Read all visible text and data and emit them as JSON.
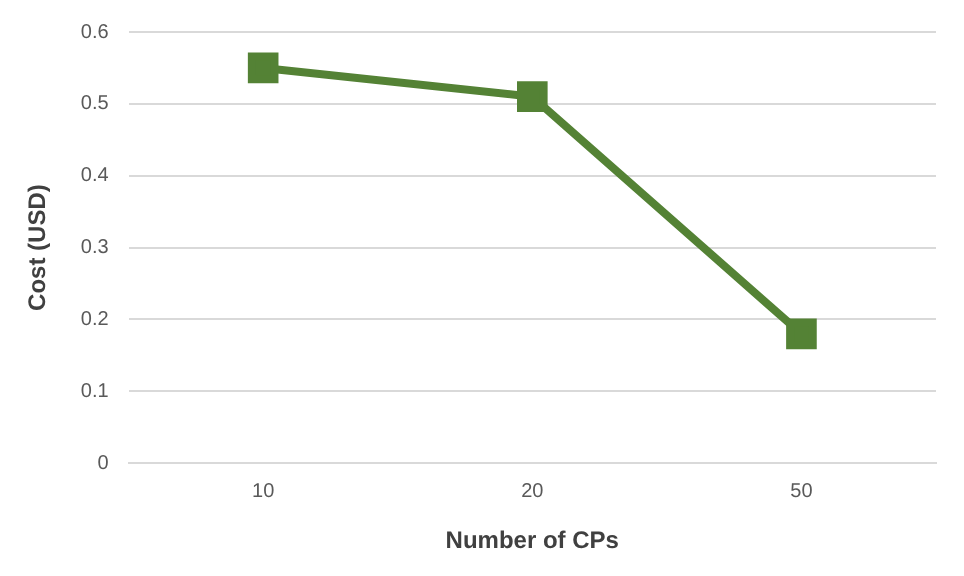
{
  "chart_data": {
    "type": "line",
    "xlabel": "Number of CPs",
    "ylabel": "Cost (USD)",
    "categories": [
      "10",
      "20",
      "50"
    ],
    "series": [
      {
        "color": "#548235",
        "values": [
          0.55,
          0.51,
          0.18
        ]
      }
    ],
    "ylim": [
      0,
      0.6
    ],
    "yticks": [
      0,
      0.1,
      0.2,
      0.3,
      0.4,
      0.5,
      0.6
    ],
    "grid": "y",
    "legend": false,
    "marker": "square",
    "line_style": "solid"
  }
}
